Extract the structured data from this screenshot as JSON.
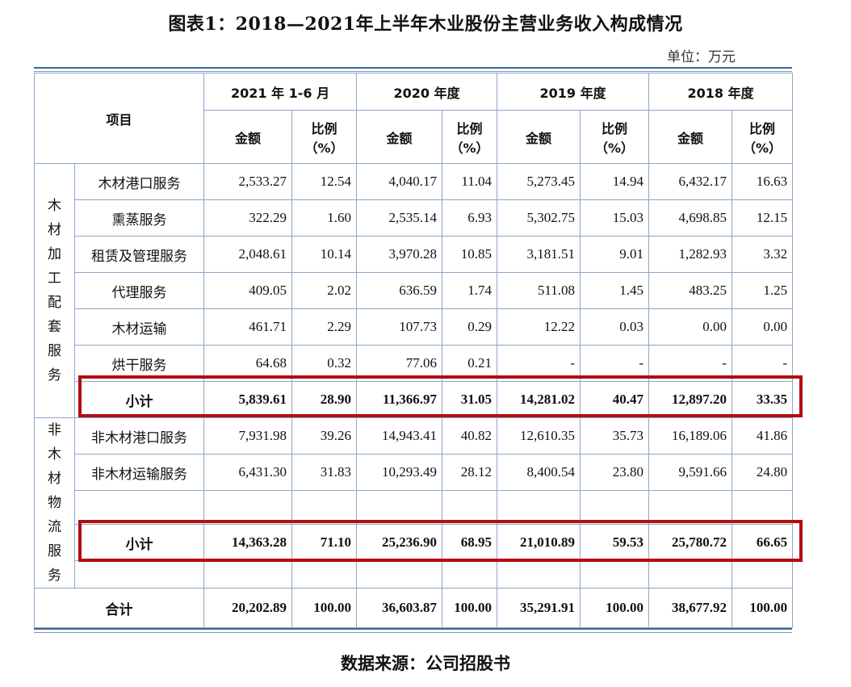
{
  "title": "图表1：2018—2021年上半年木业股份主营业务收入构成情况",
  "unit": "单位：万元",
  "source": "数据来源：公司招股书",
  "table": {
    "header": {
      "item": "项目",
      "periods": [
        "2021 年 1-6 月",
        "2020 年度",
        "2019 年度",
        "2018 年度"
      ],
      "amount": "金额",
      "ratio_line1": "比例",
      "ratio_line2": "（%）"
    },
    "groups": [
      {
        "name": "木材加工配套服务",
        "rows": [
          {
            "label": "木材港口服务",
            "values": [
              "2,533.27",
              "12.54",
              "4,040.17",
              "11.04",
              "5,273.45",
              "14.94",
              "6,432.17",
              "16.63"
            ]
          },
          {
            "label": "熏蒸服务",
            "values": [
              "322.29",
              "1.60",
              "2,535.14",
              "6.93",
              "5,302.75",
              "15.03",
              "4,698.85",
              "12.15"
            ]
          },
          {
            "label": "租赁及管理服务",
            "values": [
              "2,048.61",
              "10.14",
              "3,970.28",
              "10.85",
              "3,181.51",
              "9.01",
              "1,282.93",
              "3.32"
            ]
          },
          {
            "label": "代理服务",
            "values": [
              "409.05",
              "2.02",
              "636.59",
              "1.74",
              "511.08",
              "1.45",
              "483.25",
              "1.25"
            ]
          },
          {
            "label": "木材运输",
            "values": [
              "461.71",
              "2.29",
              "107.73",
              "0.29",
              "12.22",
              "0.03",
              "0.00",
              "0.00"
            ]
          },
          {
            "label": "烘干服务",
            "values": [
              "64.68",
              "0.32",
              "77.06",
              "0.21",
              "-",
              "-",
              "-",
              "-"
            ]
          }
        ],
        "subtotal": {
          "label": "小计",
          "values": [
            "5,839.61",
            "28.90",
            "11,366.97",
            "31.05",
            "14,281.02",
            "40.47",
            "12,897.20",
            "33.35"
          ]
        }
      },
      {
        "name": "非木材物流服务",
        "rows": [
          {
            "label": "非木材港口服务",
            "values": [
              "7,931.98",
              "39.26",
              "14,943.41",
              "40.82",
              "12,610.35",
              "35.73",
              "16,189.06",
              "41.86"
            ]
          },
          {
            "label": "非木材运输服务",
            "values": [
              "6,431.30",
              "31.83",
              "10,293.49",
              "28.12",
              "8,400.54",
              "23.80",
              "9,591.66",
              "24.80"
            ]
          }
        ],
        "subtotal": {
          "label": "小计",
          "values": [
            "14,363.28",
            "71.10",
            "25,236.90",
            "68.95",
            "21,010.89",
            "59.53",
            "25,780.72",
            "66.65"
          ]
        }
      }
    ],
    "total": {
      "label": "合计",
      "values": [
        "20,202.89",
        "100.00",
        "36,603.87",
        "100.00",
        "35,291.91",
        "100.00",
        "38,677.92",
        "100.00"
      ]
    }
  },
  "colors": {
    "highlight": "#b20d10",
    "border": "#8fa6c8",
    "rule": "#41669a"
  }
}
